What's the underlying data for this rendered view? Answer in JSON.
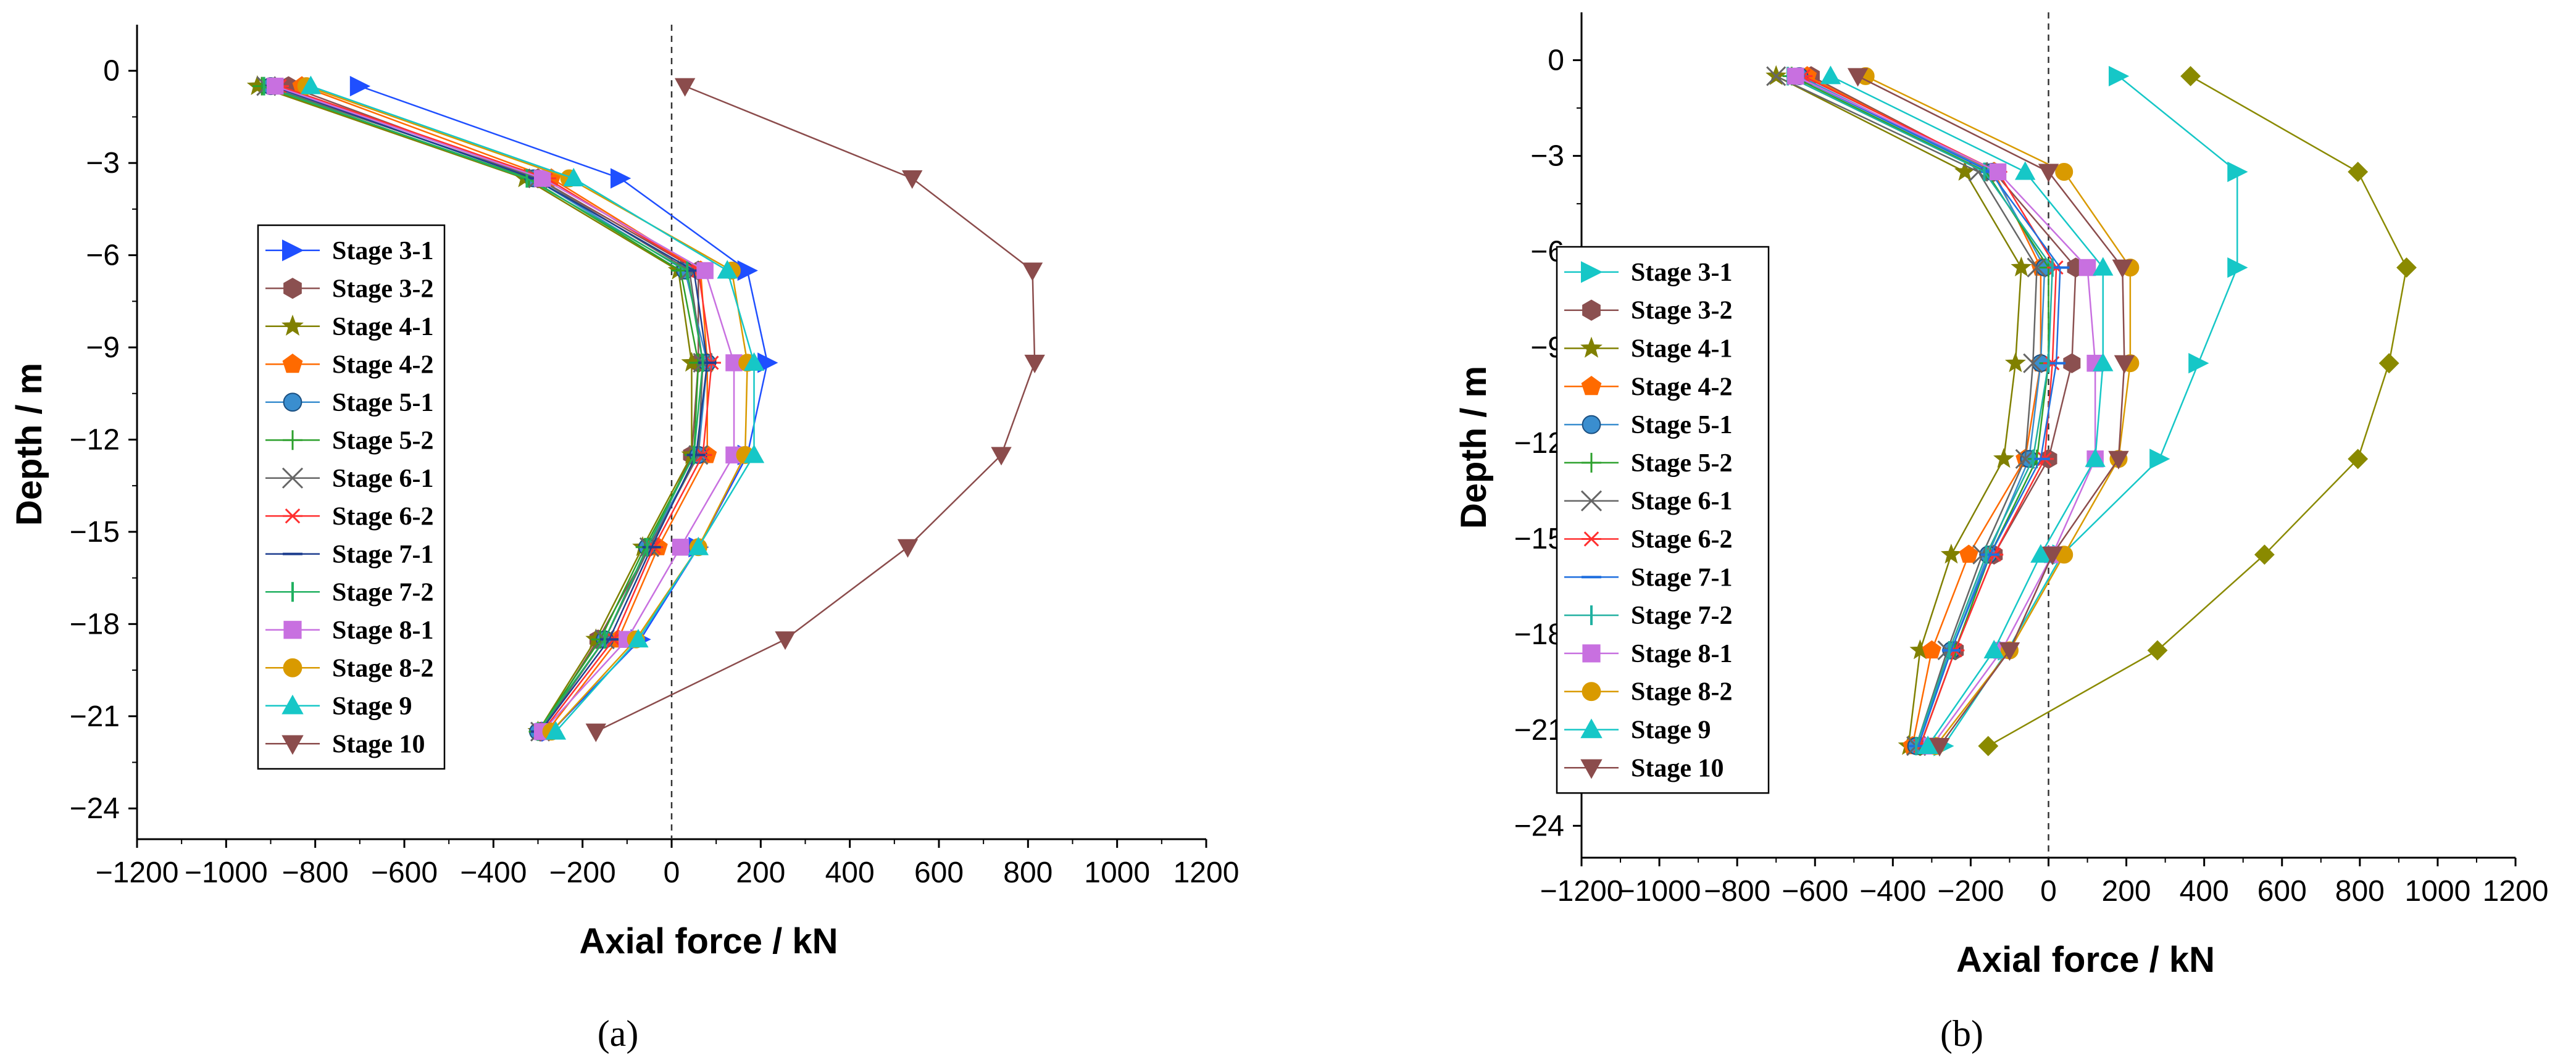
{
  "chart_data": [
    {
      "type": "line",
      "panel_label": "(a)",
      "xlabel": "Axial force / kN",
      "ylabel": "Depth / m",
      "xlim": [
        -1200,
        1200
      ],
      "ylim": [
        -25,
        1.5
      ],
      "xticks": [
        -1200,
        -1000,
        -800,
        -600,
        -400,
        -200,
        0,
        200,
        400,
        600,
        800,
        1000,
        1200
      ],
      "yticks": [
        0,
        -3,
        -6,
        -9,
        -12,
        -15,
        -18,
        -21,
        -24
      ],
      "depths": [
        -0.5,
        -3.5,
        -6.5,
        -9.5,
        -12.5,
        -15.5,
        -18.5,
        -21.5
      ],
      "zero_line": "dashed vertical line at 0",
      "legend_position": "left",
      "series": [
        {
          "name": "Stage 3-1",
          "color": "#1f4fff",
          "marker": "tri-right",
          "x": [
            -700,
            -115,
            170,
            215,
            170,
            60,
            -70,
            -270
          ]
        },
        {
          "name": "Stage 3-2",
          "color": "#8b5050",
          "marker": "hexagon",
          "x": [
            -860,
            -300,
            60,
            60,
            45,
            -50,
            -165,
            -295
          ]
        },
        {
          "name": "Stage 4-1",
          "color": "#808000",
          "marker": "star",
          "x": [
            -930,
            -330,
            15,
            45,
            45,
            -65,
            -170,
            -300
          ]
        },
        {
          "name": "Stage 4-2",
          "color": "#ff6a00",
          "marker": "pentagon",
          "x": [
            -830,
            -270,
            65,
            80,
            80,
            -30,
            -120,
            -280
          ]
        },
        {
          "name": "Stage 5-1",
          "color": "#3a8ecf",
          "marker": "sphere",
          "x": [
            -900,
            -310,
            30,
            80,
            60,
            -55,
            -150,
            -300
          ]
        },
        {
          "name": "Stage 5-2",
          "color": "#2ca02c",
          "marker": "plus",
          "x": [
            -920,
            -320,
            20,
            60,
            50,
            -60,
            -160,
            -300
          ]
        },
        {
          "name": "Stage 6-1",
          "color": "#666666",
          "marker": "x",
          "x": [
            -910,
            -300,
            40,
            70,
            60,
            -50,
            -150,
            -295
          ]
        },
        {
          "name": "Stage 6-2",
          "color": "#ff3030",
          "marker": "asterisk",
          "x": [
            -880,
            -280,
            60,
            90,
            70,
            -40,
            -130,
            -290
          ]
        },
        {
          "name": "Stage 7-1",
          "color": "#1f3f8f",
          "marker": "hline",
          "x": [
            -895,
            -310,
            50,
            80,
            55,
            -45,
            -140,
            -295
          ]
        },
        {
          "name": "Stage 7-2",
          "color": "#20b060",
          "marker": "vline",
          "x": [
            -915,
            -325,
            35,
            70,
            50,
            -55,
            -150,
            -300
          ]
        },
        {
          "name": "Stage 8-1",
          "color": "#c870e0",
          "marker": "square",
          "x": [
            -890,
            -290,
            75,
            140,
            140,
            20,
            -100,
            -290
          ]
        },
        {
          "name": "Stage 8-2",
          "color": "#d99a00",
          "marker": "circle",
          "x": [
            -820,
            -230,
            135,
            170,
            165,
            60,
            -80,
            -270
          ]
        },
        {
          "name": "Stage 9",
          "color": "#16c7c7",
          "marker": "tri-up",
          "x": [
            -810,
            -220,
            125,
            185,
            185,
            60,
            -75,
            -260
          ]
        },
        {
          "name": "Stage 10",
          "color": "#8b4c4c",
          "marker": "tri-down",
          "x": [
            30,
            540,
            810,
            815,
            740,
            530,
            255,
            -170
          ]
        }
      ]
    },
    {
      "type": "line",
      "panel_label": "(b)",
      "xlabel": "Axial force / kN",
      "ylabel": "Depth / m",
      "xlim": [
        -1200,
        1200
      ],
      "ylim": [
        -25,
        1.5
      ],
      "xticks": [
        -1200,
        -1000,
        -800,
        -600,
        -400,
        -200,
        0,
        200,
        400,
        600,
        800,
        1000,
        1200
      ],
      "yticks": [
        0,
        -3,
        -6,
        -9,
        -12,
        -15,
        -18,
        -21,
        -24
      ],
      "depths": [
        -0.5,
        -3.5,
        -6.5,
        -9.5,
        -12.5,
        -15.5,
        -18.5,
        -21.5
      ],
      "zero_line": "dashed vertical line at 0",
      "legend_position": "left",
      "extra_series": {
        "name": "",
        "color": "#8a8a00",
        "marker": "diamond",
        "x": [
          365,
          795,
          920,
          875,
          795,
          555,
          280,
          -155
        ]
      },
      "series": [
        {
          "name": "Stage 3-1",
          "color": "#16c7c7",
          "marker": "tri-right",
          "x": [
            180,
            485,
            485,
            385,
            285,
            35,
            -105,
            -270
          ]
        },
        {
          "name": "Stage 3-2",
          "color": "#8b5050",
          "marker": "hexagon",
          "x": [
            -610,
            -140,
            70,
            60,
            0,
            -140,
            -240,
            -330
          ]
        },
        {
          "name": "Stage 4-1",
          "color": "#808000",
          "marker": "star",
          "x": [
            -700,
            -215,
            -70,
            -85,
            -115,
            -250,
            -330,
            -360
          ]
        },
        {
          "name": "Stage 4-2",
          "color": "#ff6a00",
          "marker": "pentagon",
          "x": [
            -620,
            -140,
            -20,
            -20,
            -60,
            -205,
            -300,
            -350
          ]
        },
        {
          "name": "Stage 5-1",
          "color": "#3a8ecf",
          "marker": "sphere",
          "x": [
            -640,
            -145,
            -10,
            -20,
            -50,
            -155,
            -250,
            -340
          ]
        },
        {
          "name": "Stage 5-2",
          "color": "#2ca02c",
          "marker": "plus",
          "x": [
            -660,
            -160,
            0,
            0,
            -30,
            -150,
            -240,
            -330
          ]
        },
        {
          "name": "Stage 6-1",
          "color": "#666666",
          "marker": "x",
          "x": [
            -700,
            -180,
            -30,
            -40,
            -60,
            -170,
            -260,
            -340
          ]
        },
        {
          "name": "Stage 6-2",
          "color": "#ff3030",
          "marker": "asterisk",
          "x": [
            -630,
            -130,
            20,
            10,
            -10,
            -140,
            -240,
            -330
          ]
        },
        {
          "name": "Stage 7-1",
          "color": "#1f6fdf",
          "marker": "hline",
          "x": [
            -650,
            -150,
            30,
            20,
            -20,
            -150,
            -250,
            -335
          ]
        },
        {
          "name": "Stage 7-2",
          "color": "#20b0a0",
          "marker": "vline",
          "x": [
            -670,
            -165,
            10,
            0,
            -40,
            -160,
            -255,
            -340
          ]
        },
        {
          "name": "Stage 8-1",
          "color": "#c870e0",
          "marker": "square",
          "x": [
            -650,
            -130,
            100,
            120,
            120,
            10,
            -120,
            -300
          ]
        },
        {
          "name": "Stage 8-2",
          "color": "#d99a00",
          "marker": "circle",
          "x": [
            -470,
            40,
            210,
            210,
            180,
            40,
            -100,
            -290
          ]
        },
        {
          "name": "Stage 9",
          "color": "#16c7c7",
          "marker": "tri-up",
          "x": [
            -560,
            -60,
            140,
            140,
            120,
            -20,
            -140,
            -310
          ]
        },
        {
          "name": "Stage 10",
          "color": "#8b4c4c",
          "marker": "tri-down",
          "x": [
            -490,
            0,
            190,
            195,
            180,
            10,
            -100,
            -280
          ]
        }
      ]
    }
  ]
}
